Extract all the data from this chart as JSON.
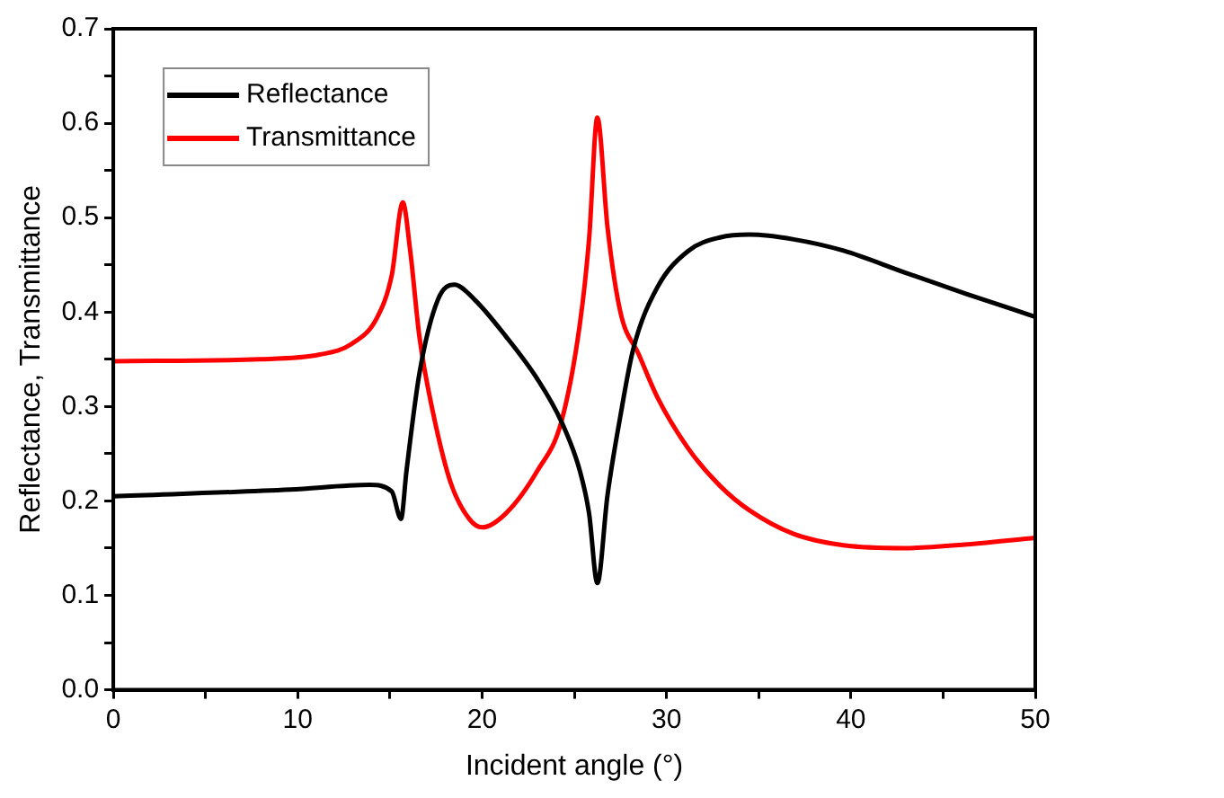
{
  "chart_data": {
    "type": "line",
    "xlabel": "Incident angle (°)",
    "ylabel": "Reflectance, Transmittance",
    "xlim": [
      0,
      50
    ],
    "ylim": [
      0,
      0.7
    ],
    "xticks": [
      0,
      {
        "value": 5,
        "label": null
      },
      10,
      {
        "value": 15,
        "label": null
      },
      20,
      {
        "value": 25,
        "label": null
      },
      30,
      {
        "value": 35,
        "label": null
      },
      40,
      {
        "value": 45,
        "label": null
      },
      50
    ],
    "yticks": [
      {
        "value": 0,
        "label": "0.0"
      },
      {
        "value": 0.05,
        "label": null
      },
      0.1,
      {
        "value": 0.15,
        "label": null
      },
      0.2,
      {
        "value": 0.25,
        "label": null
      },
      0.3,
      {
        "value": 0.35,
        "label": null
      },
      0.4,
      {
        "value": 0.45,
        "label": null
      },
      0.5,
      {
        "value": 0.55,
        "label": null
      },
      0.6,
      {
        "value": 0.65,
        "label": null
      },
      0.7
    ],
    "grid": false,
    "legend": "top left",
    "marker": "none",
    "line_style": "solid",
    "series": [
      {
        "name": "Reflectance",
        "color": "#000000",
        "x": [
          0,
          9.6,
          13.9,
          15.1,
          15.6,
          15.9,
          16.6,
          17.6,
          18.5,
          19.6,
          21.3,
          23.0,
          24.3,
          25.3,
          25.8,
          26.25,
          26.8,
          27.5,
          28.2,
          29.5,
          31.2,
          32.9,
          34.5,
          36.9,
          39.6,
          42.9,
          46.3,
          50
        ],
        "values": [
          0.205,
          0.212,
          0.217,
          0.21,
          0.181,
          0.232,
          0.335,
          0.413,
          0.429,
          0.413,
          0.374,
          0.329,
          0.284,
          0.232,
          0.187,
          0.113,
          0.206,
          0.29,
          0.361,
          0.426,
          0.465,
          0.479,
          0.482,
          0.477,
          0.465,
          0.442,
          0.419,
          0.395
        ]
      },
      {
        "name": "Transmittance",
        "color": "#ff0000",
        "x": [
          0,
          7.9,
          11.2,
          12.9,
          14.3,
          15.1,
          15.7,
          16.1,
          16.6,
          17.3,
          18.3,
          19.3,
          20.0,
          21.3,
          23.0,
          24.3,
          25.3,
          25.8,
          26.25,
          26.8,
          27.5,
          28.5,
          29.5,
          31.2,
          32.9,
          34.5,
          36.9,
          39.6,
          42.9,
          46.3,
          50
        ],
        "values": [
          0.348,
          0.35,
          0.355,
          0.366,
          0.394,
          0.439,
          0.516,
          0.465,
          0.374,
          0.297,
          0.219,
          0.181,
          0.172,
          0.187,
          0.232,
          0.284,
          0.387,
          0.477,
          0.606,
          0.49,
          0.4,
          0.355,
          0.31,
          0.255,
          0.216,
          0.19,
          0.165,
          0.153,
          0.15,
          0.154,
          0.161
        ]
      }
    ]
  }
}
